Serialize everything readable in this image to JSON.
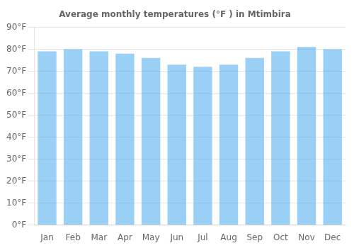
{
  "chart_data": {
    "type": "bar",
    "title": "Average monthly temperatures (°F ) in Mtimbira",
    "categories": [
      "Jan",
      "Feb",
      "Mar",
      "Apr",
      "May",
      "Jun",
      "Jul",
      "Aug",
      "Sep",
      "Oct",
      "Nov",
      "Dec"
    ],
    "values": [
      79,
      80,
      79,
      78,
      76,
      73,
      72,
      73,
      76,
      79,
      81,
      80
    ],
    "ylim": [
      0,
      90
    ],
    "yticks": [
      {
        "value": 0,
        "label": "0°F"
      },
      {
        "value": 10,
        "label": "10°F"
      },
      {
        "value": 20,
        "label": "20°F"
      },
      {
        "value": 30,
        "label": "30°F"
      },
      {
        "value": 40,
        "label": "40°F"
      },
      {
        "value": 50,
        "label": "50°F"
      },
      {
        "value": 60,
        "label": "60°F"
      },
      {
        "value": 70,
        "label": "70°F"
      },
      {
        "value": 80,
        "label": "80°F"
      },
      {
        "value": 90,
        "label": "90°F"
      }
    ],
    "grid": true
  }
}
